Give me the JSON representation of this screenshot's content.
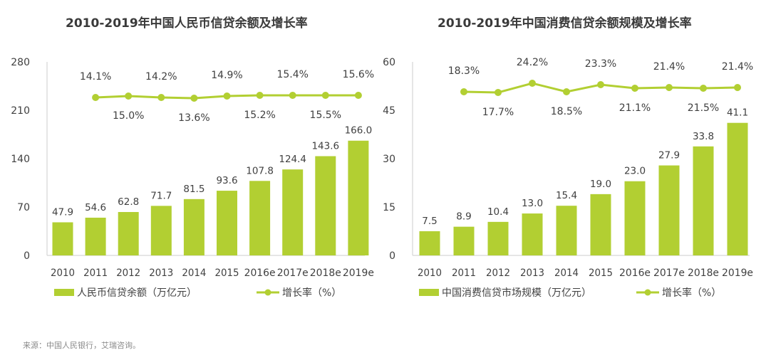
{
  "colors": {
    "bar": "#b2cf32",
    "line": "#b2cf32",
    "axis": "#cccccc",
    "text": "#404040"
  },
  "source": "来源：中国人民银行，艾瑞咨询。",
  "chart_data": [
    {
      "type": "bar",
      "title": "2010-2019年中国人民币信贷余额及增长率",
      "categories": [
        "2010",
        "2011",
        "2012",
        "2013",
        "2014",
        "2015",
        "2016e",
        "2017e",
        "2018e",
        "2019e"
      ],
      "series": [
        {
          "name": "人民币信贷余额（万亿元）",
          "type": "bar",
          "values": [
            47.9,
            54.6,
            62.8,
            71.7,
            81.5,
            93.6,
            107.8,
            124.4,
            143.6,
            166.0
          ],
          "labels": [
            "47.9",
            "54.6",
            "62.8",
            "71.7",
            "81.5",
            "93.6",
            "107.8",
            "124.4",
            "143.6",
            "166.0"
          ]
        },
        {
          "name": "增长率（%）",
          "type": "line",
          "values": [
            null,
            14.1,
            15.0,
            14.2,
            13.6,
            14.9,
            15.2,
            15.4,
            15.5,
            15.6
          ],
          "labels": [
            "",
            "14.1%",
            "15.0%",
            "14.2%",
            "13.6%",
            "14.9%",
            "15.2%",
            "15.4%",
            "15.5%",
            "15.6%"
          ]
        }
      ],
      "yticks": [
        "0",
        "70",
        "140",
        "210",
        "280"
      ],
      "ylim": [
        0,
        280
      ],
      "legend": "bottom",
      "grid": false
    },
    {
      "type": "bar",
      "title": "2010-2019年中国消费信贷余额规模及增长率",
      "categories": [
        "2010",
        "2011",
        "2012",
        "2013",
        "2014",
        "2015",
        "2016e",
        "2017e",
        "2018e",
        "2019e"
      ],
      "series": [
        {
          "name": "中国消费信贷市场规模（万亿元）",
          "type": "bar",
          "values": [
            7.5,
            8.9,
            10.4,
            13.0,
            15.4,
            19.0,
            23.0,
            27.9,
            33.8,
            41.1
          ],
          "labels": [
            "7.5",
            "8.9",
            "10.4",
            "13.0",
            "15.4",
            "19.0",
            "23.0",
            "27.9",
            "33.8",
            "41.1"
          ]
        },
        {
          "name": "增长率（%）",
          "type": "line",
          "values": [
            null,
            18.3,
            17.7,
            24.2,
            18.5,
            23.3,
            21.1,
            21.4,
            21.5,
            21.4
          ],
          "labels": [
            "",
            "18.3%",
            "17.7%",
            "24.2%",
            "18.5%",
            "23.3%",
            "21.1%",
            "21.4%",
            "21.5%",
            "21.4%"
          ]
        }
      ],
      "yticks": [
        "0",
        "15",
        "30",
        "45",
        "60"
      ],
      "ylim": [
        0,
        60
      ],
      "legend": "bottom",
      "grid": false
    }
  ]
}
